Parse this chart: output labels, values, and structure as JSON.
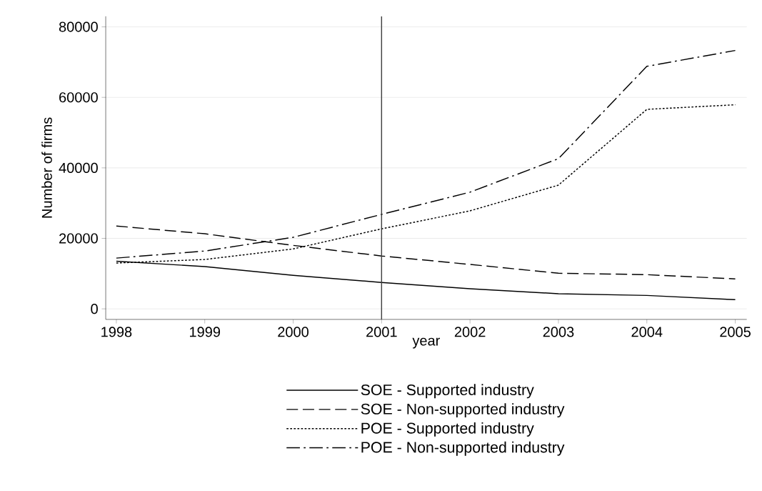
{
  "chart_data": {
    "type": "line",
    "xlabel": "year",
    "ylabel": "Number of firms",
    "x": [
      1998,
      1999,
      2000,
      2001,
      2002,
      2003,
      2004,
      2005
    ],
    "xlim": [
      1997.88,
      2005.13
    ],
    "ylim": [
      -3000,
      83000
    ],
    "xticks": [
      1998,
      1999,
      2000,
      2001,
      2002,
      2003,
      2004,
      2005
    ],
    "yticks": [
      0,
      20000,
      40000,
      60000,
      80000
    ],
    "grid": "y",
    "legend": "bottom",
    "marker": "none",
    "ref_lines": [
      {
        "axis": "x",
        "value": 2001,
        "color": "#404040",
        "line_style": "solid"
      }
    ],
    "series": [
      {
        "name": "SOE - Supported industry",
        "color": "#000000",
        "line_style": "solid",
        "values": [
          13500,
          12000,
          9500,
          7500,
          5700,
          4300,
          3800,
          2600
        ]
      },
      {
        "name": "SOE - Non-supported industry",
        "color": "#000000",
        "line_style": "dashed",
        "values": [
          23500,
          21300,
          18000,
          15000,
          12600,
          10100,
          9700,
          8500
        ]
      },
      {
        "name": "POE - Supported industry",
        "color": "#000000",
        "line_style": "dotted",
        "values": [
          13000,
          14000,
          17000,
          22700,
          27800,
          35100,
          56600,
          57900
        ]
      },
      {
        "name": "POE - Non-supported industry",
        "color": "#000000",
        "line_style": "dashdot",
        "values": [
          14400,
          16400,
          20300,
          26800,
          33100,
          42600,
          68800,
          73300
        ]
      }
    ]
  }
}
